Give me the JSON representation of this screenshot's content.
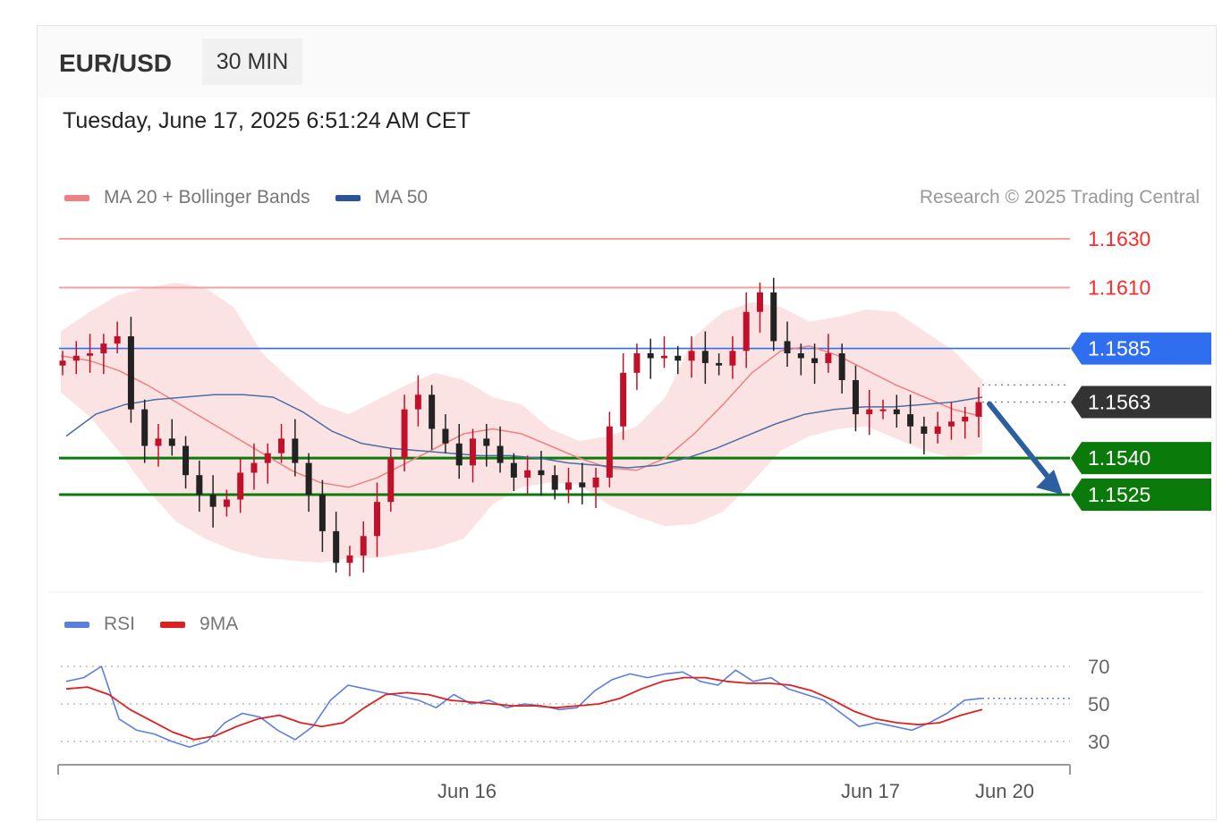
{
  "header": {
    "symbol": "EUR/USD",
    "timeframe": "30 MIN",
    "timestamp": "Tuesday, June 17, 2025 6:51:24 AM CET",
    "credit": "Research © 2025 Trading Central"
  },
  "legend_price": [
    {
      "label": "MA 20 + Bollinger Bands",
      "color": "#f08080"
    },
    {
      "label": "MA 50",
      "color": "#2a5599"
    }
  ],
  "legend_rsi": [
    {
      "label": "RSI",
      "color": "#5b7fe0"
    },
    {
      "label": "9MA",
      "color": "#e02020"
    }
  ],
  "colors": {
    "resistance": "#ff2a2a",
    "pivot": "#2f6fef",
    "support": "#0a7a0a",
    "current": "#333333",
    "arrow": "#2c5fa0",
    "candle_up": "#c0102a",
    "candle_down": "#222222"
  },
  "chart_data": [
    {
      "type": "candlestick",
      "ylim": [
        1.148,
        1.1645
      ],
      "xlabels": [
        "Jun 16",
        "Jun 17",
        "Jun 20"
      ],
      "levels": [
        {
          "label": "1.1630",
          "value": 1.163,
          "kind": "resistance"
        },
        {
          "label": "1.1610",
          "value": 1.161,
          "kind": "resistance"
        },
        {
          "label": "1.1585",
          "value": 1.1585,
          "kind": "pivot"
        },
        {
          "label": "1.1563",
          "value": 1.1563,
          "kind": "current"
        },
        {
          "label": "1.1540",
          "value": 1.154,
          "kind": "support"
        },
        {
          "label": "1.1525",
          "value": 1.1525,
          "kind": "support"
        }
      ],
      "forecast": {
        "from": 1.1563,
        "to": 1.1525,
        "direction": "down"
      },
      "series": [
        {
          "name": "MA 20",
          "values": [
            1.1582,
            1.158,
            1.1576,
            1.157,
            1.1563,
            1.1556,
            1.1549,
            1.1542,
            1.1535,
            1.153,
            1.1528,
            1.1532,
            1.1538,
            1.1544,
            1.155,
            1.1552,
            1.155,
            1.1545,
            1.154,
            1.1536,
            1.1535,
            1.154,
            1.155,
            1.1562,
            1.1575,
            1.1584,
            1.1586,
            1.1582,
            1.1576,
            1.157,
            1.1565,
            1.156,
            1.1557
          ]
        },
        {
          "name": "MA 50",
          "values": [
            1.1549,
            1.1558,
            1.1562,
            1.1564,
            1.1565,
            1.1566,
            1.1566,
            1.1565,
            1.1559,
            1.1551,
            1.1546,
            1.1544,
            1.1543,
            1.1542,
            1.1541,
            1.1541,
            1.154,
            1.1538,
            1.1537,
            1.1536,
            1.1537,
            1.154,
            1.1544,
            1.1549,
            1.1554,
            1.1558,
            1.156,
            1.1561,
            1.1561,
            1.1562,
            1.1563,
            1.1565
          ]
        },
        {
          "name": "Upper Band",
          "values": [
            1.1592,
            1.16,
            1.1607,
            1.161,
            1.1612,
            1.161,
            1.1602,
            1.1583,
            1.1572,
            1.1562,
            1.1558,
            1.1564,
            1.157,
            1.1575,
            1.1572,
            1.1565,
            1.1562,
            1.1552,
            1.1547,
            1.1549,
            1.1553,
            1.1565,
            1.159,
            1.16,
            1.1604,
            1.1602,
            1.1596,
            1.1598,
            1.1601,
            1.16,
            1.1592,
            1.1584,
            1.1572
          ]
        },
        {
          "name": "Lower Band",
          "values": [
            1.1567,
            1.1557,
            1.1543,
            1.1527,
            1.1514,
            1.1507,
            1.1502,
            1.1499,
            1.1498,
            1.1497,
            1.1499,
            1.1499,
            1.1501,
            1.1503,
            1.1507,
            1.1521,
            1.1528,
            1.153,
            1.1529,
            1.1521,
            1.1516,
            1.1512,
            1.1513,
            1.1518,
            1.153,
            1.1543,
            1.1549,
            1.1552,
            1.1553,
            1.1548,
            1.1543,
            1.154,
            1.1542
          ]
        },
        {
          "name": "Price",
          "values": [
            1.158,
            1.1582,
            1.1583,
            1.1587,
            1.159,
            1.156,
            1.1545,
            1.1548,
            1.1545,
            1.1533,
            1.1525,
            1.152,
            1.1523,
            1.1534,
            1.1538,
            1.1542,
            1.1548,
            1.1538,
            1.1525,
            1.151,
            1.1497,
            1.15,
            1.1508,
            1.1522,
            1.154,
            1.156,
            1.1566,
            1.1552,
            1.1546,
            1.1537,
            1.1548,
            1.1545,
            1.1538,
            1.1532,
            1.1535,
            1.1533,
            1.1527,
            1.153,
            1.1528,
            1.1532,
            1.1553,
            1.1575,
            1.1583,
            1.1581,
            1.1582,
            1.158,
            1.1584,
            1.1579,
            1.1578,
            1.1584,
            1.16,
            1.1608,
            1.1588,
            1.1583,
            1.1581,
            1.1579,
            1.1583,
            1.1572,
            1.1558,
            1.156,
            1.156,
            1.1558,
            1.1553,
            1.155,
            1.1553,
            1.1555,
            1.1557,
            1.1563
          ]
        }
      ]
    },
    {
      "type": "line",
      "ylim": [
        20,
        80
      ],
      "yticks": [
        70,
        50,
        30
      ],
      "series": [
        {
          "name": "RSI",
          "values": [
            62,
            64,
            70,
            42,
            36,
            34,
            30,
            27,
            30,
            40,
            45,
            43,
            36,
            31,
            38,
            52,
            60,
            58,
            56,
            54,
            52,
            48,
            55,
            50,
            52,
            48,
            50,
            49,
            47,
            48,
            57,
            63,
            66,
            64,
            66,
            67,
            62,
            60,
            68,
            62,
            64,
            58,
            55,
            52,
            45,
            38,
            40,
            38,
            36,
            40,
            45,
            52,
            53
          ]
        },
        {
          "name": "9MA",
          "values": [
            58,
            59,
            55,
            47,
            41,
            35,
            31,
            33,
            38,
            42,
            44,
            40,
            38,
            40,
            48,
            55,
            56,
            55,
            52,
            51,
            50,
            49,
            49,
            48,
            49,
            50,
            53,
            58,
            62,
            64,
            64,
            62,
            61,
            61,
            60,
            57,
            52,
            46,
            42,
            40,
            39,
            40,
            44,
            47
          ]
        }
      ]
    }
  ]
}
